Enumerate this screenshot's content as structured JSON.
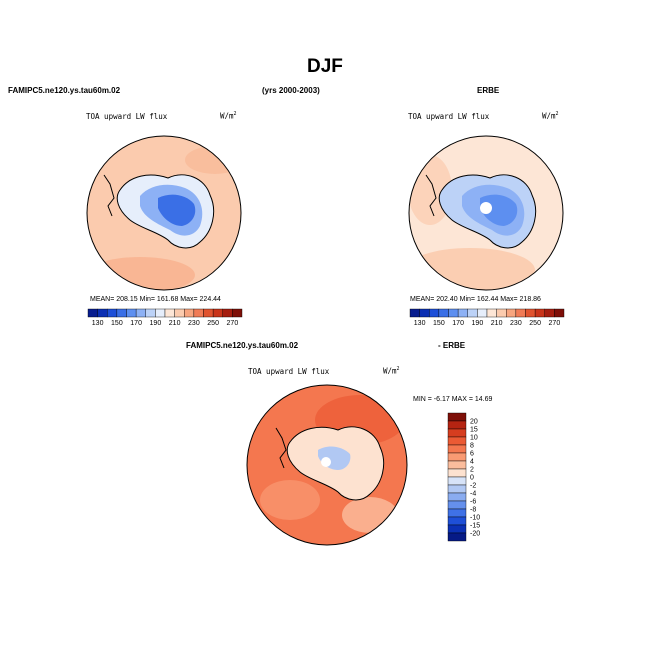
{
  "title": "DJF",
  "model_label": "FAMIPC5.ne120.ys.tau60m.02",
  "years_label": "(yrs 2000-2003)",
  "obs_label": "ERBE",
  "diff_model_label": "FAMIPC5.ne120.ys.tau60m.02",
  "diff_obs_label": "- ERBE",
  "panels": [
    {
      "id": "model",
      "variable": "TOA upward LW flux",
      "units": "W/m",
      "units_sup": "2",
      "stats": "MEAN= 208.15   Min= 161.68   Max= 224.44"
    },
    {
      "id": "obs",
      "variable": "TOA upward LW flux",
      "units": "W/m",
      "units_sup": "2",
      "stats": "MEAN= 202.40   Min= 162.44   Max= 218.86"
    },
    {
      "id": "diff",
      "variable": "TOA upward LW flux",
      "units": "W/m",
      "units_sup": "2",
      "stats": "MIN =   -6.17  MAX =   14.69"
    }
  ],
  "colorbar_main": {
    "labels": [
      "130",
      "150",
      "170",
      "190",
      "210",
      "230",
      "250",
      "270"
    ],
    "colors": [
      "#081d8f",
      "#0b2fb3",
      "#1d4fd8",
      "#3a6fe6",
      "#5d8ff0",
      "#8db1f5",
      "#bcd2f7",
      "#e6eefb",
      "#fde6d6",
      "#fbcbae",
      "#f7a57f",
      "#f07b56",
      "#e0532f",
      "#c9341a",
      "#a51d0f",
      "#7e0f08"
    ]
  },
  "colorbar_diff": {
    "labels": [
      "20",
      "15",
      "10",
      "8",
      "6",
      "4",
      "2",
      "0",
      "-2",
      "-4",
      "-6",
      "-8",
      "-10",
      "-15",
      "-20"
    ],
    "colors": [
      "#7e0f08",
      "#b52412",
      "#d63d1f",
      "#eb5a34",
      "#f4774f",
      "#f99a73",
      "#fbbd9d",
      "#fde2d0",
      "#d7e3f8",
      "#b1c8f3",
      "#8aacf0",
      "#6590ec",
      "#3f71e6",
      "#1e4fd7",
      "#0b30b4",
      "#061a86"
    ]
  }
}
